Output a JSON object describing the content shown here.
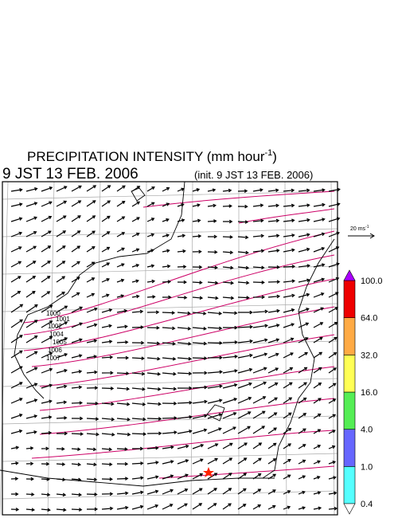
{
  "header": {
    "title": "PRECIPITATION INTENSITY (mm hour",
    "title_exponent": "-1",
    "title_close": ")",
    "valid_time": "9 JST 13 FEB. 2006",
    "init_time": "(init. 9 JST 13 FEB. 2006)"
  },
  "vector_key": {
    "label": "20 ms",
    "exponent": "-1"
  },
  "colorbar": {
    "ticks": [
      {
        "value": 0.4,
        "label": "0.4"
      },
      {
        "value": 1,
        "label": "1.0"
      },
      {
        "value": 4,
        "label": "4.0"
      },
      {
        "value": 16,
        "label": "16.0"
      },
      {
        "value": 32,
        "label": "32.0"
      },
      {
        "value": 64,
        "label": "64.0"
      },
      {
        "value": 100,
        "label": "100.0"
      }
    ],
    "colors": [
      "#55ffff",
      "#6666ff",
      "#55ee55",
      "#ffff55",
      "#ffaa44",
      "#ee0000"
    ],
    "over_color": "#aa00ff",
    "under_color": "#ffffff"
  },
  "map": {
    "isobar_labels": [
      "1000",
      "1001",
      "1002",
      "1004",
      "1005",
      "1006",
      "1007"
    ]
  }
}
